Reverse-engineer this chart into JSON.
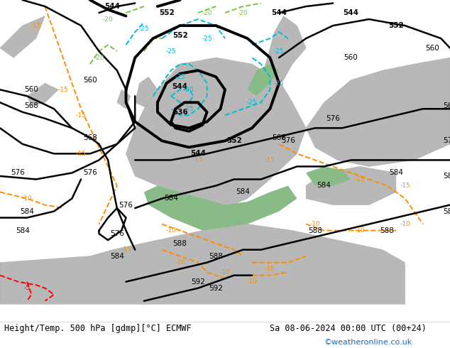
{
  "title_left": "Height/Temp. 500 hPa [gdmp][°C] ECMWF",
  "title_right": "Sa 08-06-2024 00:00 UTC (00+24)",
  "watermark": "©weatheronline.co.uk",
  "fig_width": 6.34,
  "fig_height": 4.9,
  "dpi": 100,
  "bg_color": "#c8e6c9",
  "land_color": "#d8d8d8",
  "sea_color": "#b0d0b0",
  "map_bg": "#8fbc8f",
  "bottom_bar_color": "#ffffff",
  "bottom_bar_height": 0.08,
  "text_color_left": "#000000",
  "text_color_right": "#000000",
  "watermark_color": "#1a6bbf",
  "font_size_bottom": 8.5,
  "font_size_watermark": 8,
  "geopotential_color": "#000000",
  "temp_negative_color": "#ff8c00",
  "temp_very_negative_color": "#ff0000",
  "temp_cold_color": "#00bcd4",
  "temp_green_color": "#76c442",
  "geopotential_linewidth": 1.8,
  "geopotential_bold_linewidth": 2.8,
  "temp_linewidth": 1.4
}
